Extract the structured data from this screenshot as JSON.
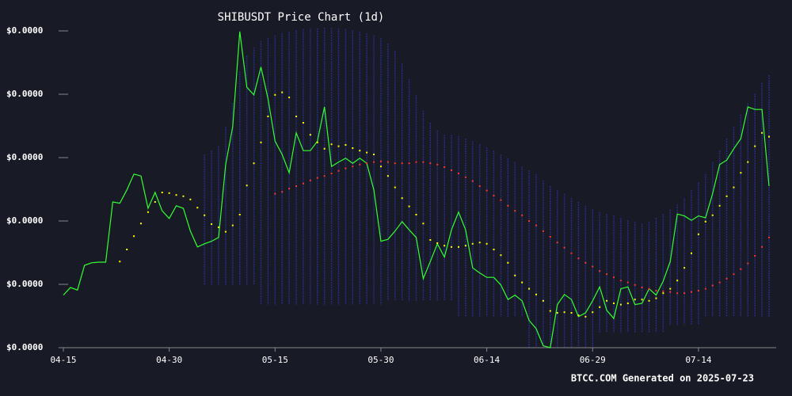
{
  "chart_data": {
    "type": "line",
    "title": "SHIBUSDT Price Chart (1d)",
    "footer": "BTCC.COM Generated on 2025-07-23",
    "categories": [
      "04-15",
      null,
      null,
      null,
      null,
      null,
      null,
      null,
      null,
      null,
      null,
      null,
      null,
      null,
      null,
      "04-30",
      null,
      null,
      null,
      null,
      null,
      null,
      null,
      null,
      null,
      null,
      null,
      null,
      null,
      null,
      "05-15",
      null,
      null,
      null,
      null,
      null,
      null,
      null,
      null,
      null,
      null,
      null,
      null,
      null,
      null,
      "05-30",
      null,
      null,
      null,
      null,
      null,
      null,
      null,
      null,
      null,
      null,
      null,
      null,
      null,
      null,
      "06-14",
      null,
      null,
      null,
      null,
      null,
      null,
      null,
      null,
      null,
      null,
      null,
      null,
      null,
      null,
      "06-29",
      null,
      null,
      null,
      null,
      null,
      null,
      null,
      null,
      null,
      null,
      null,
      null,
      null,
      null,
      "07-14",
      null,
      null,
      null,
      null,
      null,
      null,
      null,
      null,
      null,
      null
    ],
    "ylim": [
      1.1e-05,
      1.6e-05
    ],
    "yticks": [
      {
        "value": 1.1e-05,
        "label": "$0.0000"
      },
      {
        "value": 1.2e-05,
        "label": "$0.0000"
      },
      {
        "value": 1.3e-05,
        "label": "$0.0000"
      },
      {
        "value": 1.4e-05,
        "label": "$0.0000"
      },
      {
        "value": 1.5e-05,
        "label": "$0.0000"
      },
      {
        "value": 1.6e-05,
        "label": "$0.0000"
      }
    ],
    "bands": {
      "color": "#2a2f8f",
      "upper": [
        null,
        null,
        null,
        null,
        null,
        null,
        null,
        null,
        null,
        null,
        null,
        null,
        null,
        null,
        null,
        null,
        null,
        null,
        null,
        null,
        1.405e-05,
        1.411e-05,
        1.418e-05,
        1.449e-05,
        1.486e-05,
        1.536e-05,
        1.561e-05,
        1.574e-05,
        1.584e-05,
        1.589e-05,
        1.593e-05,
        1.596e-05,
        1.599e-05,
        1.601e-05,
        1.603e-05,
        1.604e-05,
        1.604e-05,
        1.605e-05,
        1.605e-05,
        1.604e-05,
        1.603e-05,
        1.601e-05,
        1.599e-05,
        1.596e-05,
        1.593e-05,
        1.589e-05,
        1.58e-05,
        1.568e-05,
        1.549e-05,
        1.524e-05,
        1.499e-05,
        1.474e-05,
        1.455e-05,
        1.443e-05,
        1.436e-05,
        1.436e-05,
        1.434e-05,
        1.43e-05,
        1.426e-05,
        1.421e-05,
        1.416e-05,
        1.411e-05,
        1.405e-05,
        1.399e-05,
        1.393e-05,
        1.386e-05,
        1.38e-05,
        1.374e-05,
        1.364e-05,
        1.355e-05,
        1.349e-05,
        1.343e-05,
        1.336e-05,
        1.33e-05,
        1.324e-05,
        1.318e-05,
        1.314e-05,
        1.311e-05,
        1.309e-05,
        1.305e-05,
        1.301e-05,
        1.299e-05,
        1.296e-05,
        1.299e-05,
        1.305e-05,
        1.311e-05,
        1.318e-05,
        1.326e-05,
        1.336e-05,
        1.349e-05,
        1.361e-05,
        1.374e-05,
        1.393e-05,
        1.411e-05,
        1.43e-05,
        1.449e-05,
        1.468e-05,
        1.486e-05,
        1.501e-05,
        1.518e-05,
        1.53e-05
      ],
      "lower": [
        null,
        null,
        null,
        null,
        null,
        null,
        null,
        null,
        null,
        null,
        null,
        null,
        null,
        null,
        null,
        null,
        null,
        null,
        null,
        null,
        1.199e-05,
        1.199e-05,
        1.199e-05,
        1.199e-05,
        1.199e-05,
        1.199e-05,
        1.199e-05,
        1.199e-05,
        1.168e-05,
        1.168e-05,
        1.168e-05,
        1.168e-05,
        1.168e-05,
        1.168e-05,
        1.168e-05,
        1.168e-05,
        1.168e-05,
        1.168e-05,
        1.168e-05,
        1.168e-05,
        1.168e-05,
        1.168e-05,
        1.168e-05,
        1.168e-05,
        1.168e-05,
        1.168e-05,
        1.174e-05,
        1.174e-05,
        1.174e-05,
        1.174e-05,
        1.174e-05,
        1.174e-05,
        1.174e-05,
        1.174e-05,
        1.174e-05,
        1.174e-05,
        1.149e-05,
        1.149e-05,
        1.149e-05,
        1.149e-05,
        1.149e-05,
        1.149e-05,
        1.149e-05,
        1.149e-05,
        1.149e-05,
        1.149e-05,
        1.1e-05,
        1.1e-05,
        1.1e-05,
        1.1e-05,
        1.1e-05,
        1.1e-05,
        1.1e-05,
        1.1e-05,
        1.1e-05,
        1.1e-05,
        1.124e-05,
        1.124e-05,
        1.124e-05,
        1.124e-05,
        1.124e-05,
        1.124e-05,
        1.124e-05,
        1.124e-05,
        1.124e-05,
        1.124e-05,
        1.136e-05,
        1.136e-05,
        1.136e-05,
        1.136e-05,
        1.136e-05,
        1.149e-05,
        1.149e-05,
        1.149e-05,
        1.149e-05,
        1.149e-05,
        1.149e-05,
        1.149e-05,
        1.149e-05,
        1.149e-05,
        1.149e-05
      ]
    },
    "series": [
      {
        "color": "#33ff33",
        "style": "line",
        "values": [
          1.183e-05,
          1.195e-05,
          1.191e-05,
          1.23e-05,
          1.234e-05,
          1.235e-05,
          1.235e-05,
          1.33e-05,
          1.328e-05,
          1.349e-05,
          1.374e-05,
          1.371e-05,
          1.32e-05,
          1.345e-05,
          1.316e-05,
          1.304e-05,
          1.324e-05,
          1.32e-05,
          1.284e-05,
          1.259e-05,
          1.264e-05,
          1.268e-05,
          1.274e-05,
          1.389e-05,
          1.449e-05,
          1.599e-05,
          1.511e-05,
          1.499e-05,
          1.543e-05,
          1.493e-05,
          1.426e-05,
          1.405e-05,
          1.376e-05,
          1.439e-05,
          1.411e-05,
          1.411e-05,
          1.426e-05,
          1.48e-05,
          1.386e-05,
          1.393e-05,
          1.399e-05,
          1.391e-05,
          1.399e-05,
          1.391e-05,
          1.349e-05,
          1.268e-05,
          1.271e-05,
          1.284e-05,
          1.299e-05,
          1.286e-05,
          1.274e-05,
          1.209e-05,
          1.236e-05,
          1.264e-05,
          1.243e-05,
          1.286e-05,
          1.314e-05,
          1.286e-05,
          1.226e-05,
          1.218e-05,
          1.211e-05,
          1.211e-05,
          1.199e-05,
          1.176e-05,
          1.183e-05,
          1.174e-05,
          1.143e-05,
          1.13e-05,
          1.103e-05,
          1.1e-05,
          1.168e-05,
          1.184e-05,
          1.176e-05,
          1.149e-05,
          1.155e-05,
          1.174e-05,
          1.196e-05,
          1.159e-05,
          1.146e-05,
          1.193e-05,
          1.196e-05,
          1.168e-05,
          1.17e-05,
          1.193e-05,
          1.183e-05,
          1.205e-05,
          1.236e-05,
          1.311e-05,
          1.308e-05,
          1.301e-05,
          1.308e-05,
          1.305e-05,
          1.343e-05,
          1.389e-05,
          1.396e-05,
          1.414e-05,
          1.43e-05,
          1.48e-05,
          1.476e-05,
          1.476e-05,
          1.355e-05
        ]
      },
      {
        "color": "#ffff00",
        "style": "dots",
        "values": [
          null,
          null,
          null,
          null,
          null,
          null,
          null,
          null,
          1.236e-05,
          1.255e-05,
          1.276e-05,
          1.296e-05,
          1.314e-05,
          1.33e-05,
          1.345e-05,
          1.344e-05,
          1.341e-05,
          1.339e-05,
          1.334e-05,
          1.321e-05,
          1.309e-05,
          1.295e-05,
          1.29e-05,
          1.283e-05,
          1.293e-05,
          1.31e-05,
          1.356e-05,
          1.391e-05,
          1.424e-05,
          1.465e-05,
          1.499e-05,
          1.503e-05,
          1.495e-05,
          1.465e-05,
          1.455e-05,
          1.436e-05,
          1.424e-05,
          1.414e-05,
          1.421e-05,
          1.418e-05,
          1.42e-05,
          1.415e-05,
          1.411e-05,
          1.408e-05,
          1.405e-05,
          1.386e-05,
          1.371e-05,
          1.353e-05,
          1.336e-05,
          1.323e-05,
          1.31e-05,
          1.296e-05,
          1.27e-05,
          1.265e-05,
          1.261e-05,
          1.259e-05,
          1.259e-05,
          1.261e-05,
          1.264e-05,
          1.266e-05,
          1.264e-05,
          1.255e-05,
          1.246e-05,
          1.234e-05,
          1.214e-05,
          1.203e-05,
          1.193e-05,
          1.184e-05,
          1.174e-05,
          1.158e-05,
          1.155e-05,
          1.156e-05,
          1.155e-05,
          1.151e-05,
          1.149e-05,
          1.156e-05,
          1.164e-05,
          1.174e-05,
          1.17e-05,
          1.168e-05,
          1.17e-05,
          1.176e-05,
          1.176e-05,
          1.174e-05,
          1.178e-05,
          1.186e-05,
          1.193e-05,
          1.206e-05,
          1.226e-05,
          1.249e-05,
          1.279e-05,
          1.299e-05,
          1.309e-05,
          1.324e-05,
          1.339e-05,
          1.353e-05,
          1.376e-05,
          1.393e-05,
          1.418e-05,
          1.439e-05,
          1.433e-05
        ]
      },
      {
        "color": "#ff3333",
        "style": "dots",
        "values": [
          null,
          null,
          null,
          null,
          null,
          null,
          null,
          null,
          null,
          null,
          null,
          null,
          null,
          null,
          null,
          null,
          null,
          null,
          null,
          null,
          null,
          null,
          null,
          null,
          null,
          null,
          null,
          null,
          null,
          null,
          1.343e-05,
          1.346e-05,
          1.351e-05,
          1.355e-05,
          1.359e-05,
          1.364e-05,
          1.368e-05,
          1.371e-05,
          1.375e-05,
          1.379e-05,
          1.383e-05,
          1.386e-05,
          1.389e-05,
          1.391e-05,
          1.393e-05,
          1.394e-05,
          1.393e-05,
          1.391e-05,
          1.391e-05,
          1.391e-05,
          1.393e-05,
          1.393e-05,
          1.391e-05,
          1.389e-05,
          1.385e-05,
          1.38e-05,
          1.375e-05,
          1.369e-05,
          1.363e-05,
          1.355e-05,
          1.348e-05,
          1.34e-05,
          1.333e-05,
          1.324e-05,
          1.316e-05,
          1.309e-05,
          1.3e-05,
          1.293e-05,
          1.284e-05,
          1.275e-05,
          1.266e-05,
          1.258e-05,
          1.249e-05,
          1.241e-05,
          1.234e-05,
          1.228e-05,
          1.221e-05,
          1.216e-05,
          1.211e-05,
          1.206e-05,
          1.203e-05,
          1.199e-05,
          1.195e-05,
          1.193e-05,
          1.19e-05,
          1.189e-05,
          1.188e-05,
          1.186e-05,
          1.186e-05,
          1.188e-05,
          1.19e-05,
          1.193e-05,
          1.198e-05,
          1.203e-05,
          1.209e-05,
          1.216e-05,
          1.224e-05,
          1.233e-05,
          1.245e-05,
          1.259e-05,
          1.274e-05
        ]
      }
    ]
  }
}
